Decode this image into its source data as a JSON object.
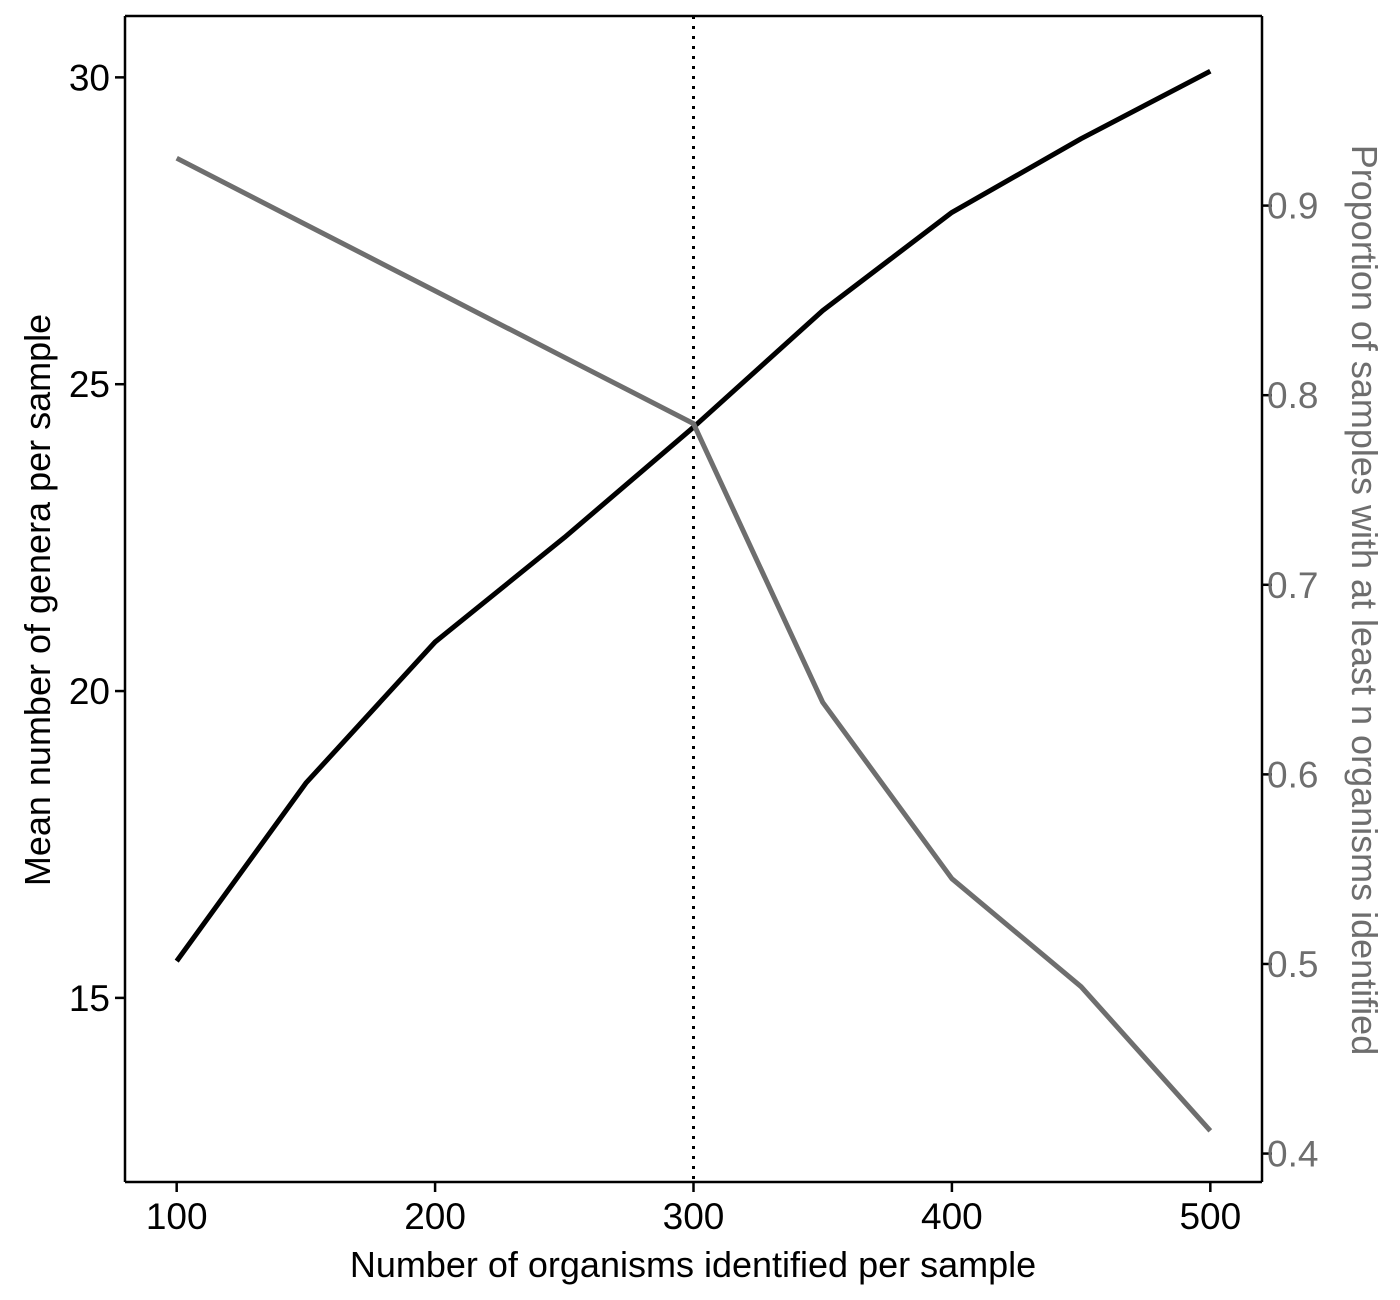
{
  "chart_data": {
    "type": "line",
    "title": "",
    "xlabel": "Number of organisms identified per sample",
    "ylabel": "Mean number of genera per sample",
    "y2label": "Proportion of samples with at least n organisms identified",
    "xlim": [
      80,
      520
    ],
    "ylim": [
      12,
      31
    ],
    "y2lim": [
      0.385,
      1.0
    ],
    "x_ticks": [
      100,
      200,
      300,
      400,
      500
    ],
    "x_tick_labels": [
      "100",
      "200",
      "300",
      "400",
      "500"
    ],
    "y_ticks": [
      15,
      20,
      25,
      30
    ],
    "y_tick_labels": [
      "15",
      "20",
      "25",
      "30"
    ],
    "y2_ticks": [
      0.4,
      0.5,
      0.6,
      0.7,
      0.8,
      0.9
    ],
    "y2_tick_labels": [
      "0.4",
      "0.5",
      "0.6",
      "0.7",
      "0.8",
      "0.9"
    ],
    "grid": false,
    "legend": "none",
    "reference_line": {
      "axis": "x",
      "value": 300,
      "style": "dotted"
    },
    "series": [
      {
        "axis": "left",
        "color": "#000000",
        "x": [
          100,
          150,
          200,
          250,
          300,
          350,
          400,
          450,
          500
        ],
        "values": [
          15.6,
          18.5,
          20.8,
          22.5,
          24.3,
          26.2,
          27.8,
          29.0,
          30.1
        ]
      },
      {
        "axis": "right",
        "color": "#6e6e6e",
        "x": [
          100,
          150,
          200,
          250,
          300,
          350,
          400,
          450,
          500
        ],
        "values": [
          0.925,
          0.89,
          0.855,
          0.82,
          0.785,
          0.638,
          0.545,
          0.488,
          0.412
        ]
      }
    ]
  }
}
